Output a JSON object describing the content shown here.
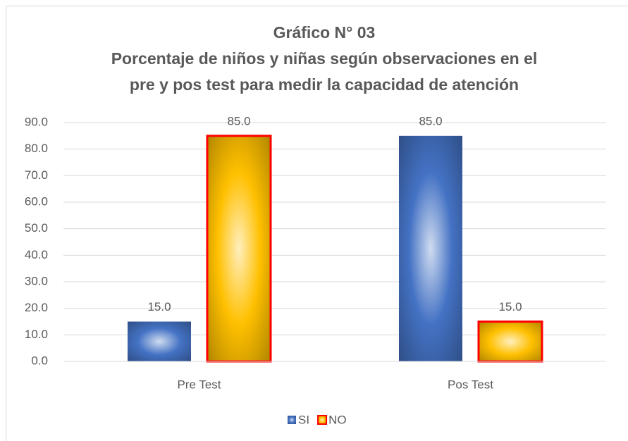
{
  "chart_data": {
    "type": "bar",
    "title": [
      "Gráfico N° 03",
      "Porcentaje de niños y niñas según observaciones en el",
      "pre y pos test para medir la capacidad de atención"
    ],
    "categories": [
      "Pre Test",
      "Pos Test"
    ],
    "series": [
      {
        "name": "SI",
        "color": "#4472c4",
        "values": [
          15,
          85
        ],
        "value_labels": [
          "15.0",
          "85.0"
        ]
      },
      {
        "name": "NO",
        "color": "#ffc000",
        "edgecolor": "#ff0000",
        "values": [
          85,
          15
        ],
        "value_labels": [
          "85.0",
          "15.0"
        ]
      }
    ],
    "ylim": [
      0,
      90
    ],
    "yticks": [
      {
        "value": 0,
        "label": "0.0"
      },
      {
        "value": 10,
        "label": "10.0"
      },
      {
        "value": 20,
        "label": "20.0"
      },
      {
        "value": 30,
        "label": "30.0"
      },
      {
        "value": 40,
        "label": "40.0"
      },
      {
        "value": 50,
        "label": "50.0"
      },
      {
        "value": 60,
        "label": "60.0"
      },
      {
        "value": 70,
        "label": "70.0"
      },
      {
        "value": 80,
        "label": "80.0"
      },
      {
        "value": 90,
        "label": "90.0"
      }
    ],
    "grid": true,
    "legend": "bottom"
  }
}
